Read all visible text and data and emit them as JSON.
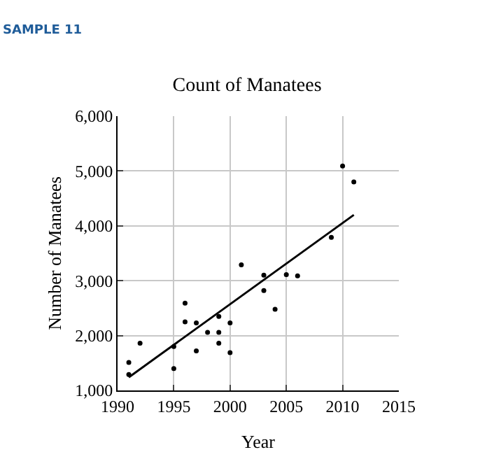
{
  "chart_data": {
    "type": "scatter",
    "title": "Count of Manatees",
    "xlabel": "Year",
    "ylabel": "Number of Manatees",
    "annotations": [
      "SAMPLE 11"
    ],
    "x": [
      1991,
      1991,
      1992,
      1995,
      1995,
      1996,
      1996,
      1997,
      1997,
      1998,
      1999,
      1999,
      1999,
      2000,
      2000,
      2001,
      2003,
      2003,
      2004,
      2005,
      2006,
      2009,
      2010,
      2011
    ],
    "series": [
      {
        "color": "#000000",
        "marker": "circle",
        "values": [
          1510,
          1290,
          1860,
          1800,
          1400,
          2590,
          2250,
          1720,
          2230,
          2060,
          2350,
          2060,
          1860,
          2230,
          1690,
          3290,
          3100,
          2820,
          2480,
          3110,
          3090,
          3790,
          5090,
          4800
        ]
      },
      {
        "type": "line",
        "color": "#000000",
        "marker": "none",
        "x": [
          1991,
          2011
        ],
        "values": [
          1240,
          4200
        ]
      }
    ],
    "xlim": [
      1990,
      2015
    ],
    "xticks": [
      1990,
      1995,
      2000,
      2005,
      2010,
      2015
    ],
    "ylim": [
      1000,
      6000
    ],
    "yticks": [
      {
        "value": 1000,
        "label": "1,000"
      },
      {
        "value": 2000,
        "label": "2,000"
      },
      {
        "value": 3000,
        "label": "3,000"
      },
      {
        "value": 4000,
        "label": "4,000"
      },
      {
        "value": 5000,
        "label": "5,000"
      },
      {
        "value": 6000,
        "label": "6,000"
      }
    ],
    "grid": true,
    "line_style": "solid"
  }
}
